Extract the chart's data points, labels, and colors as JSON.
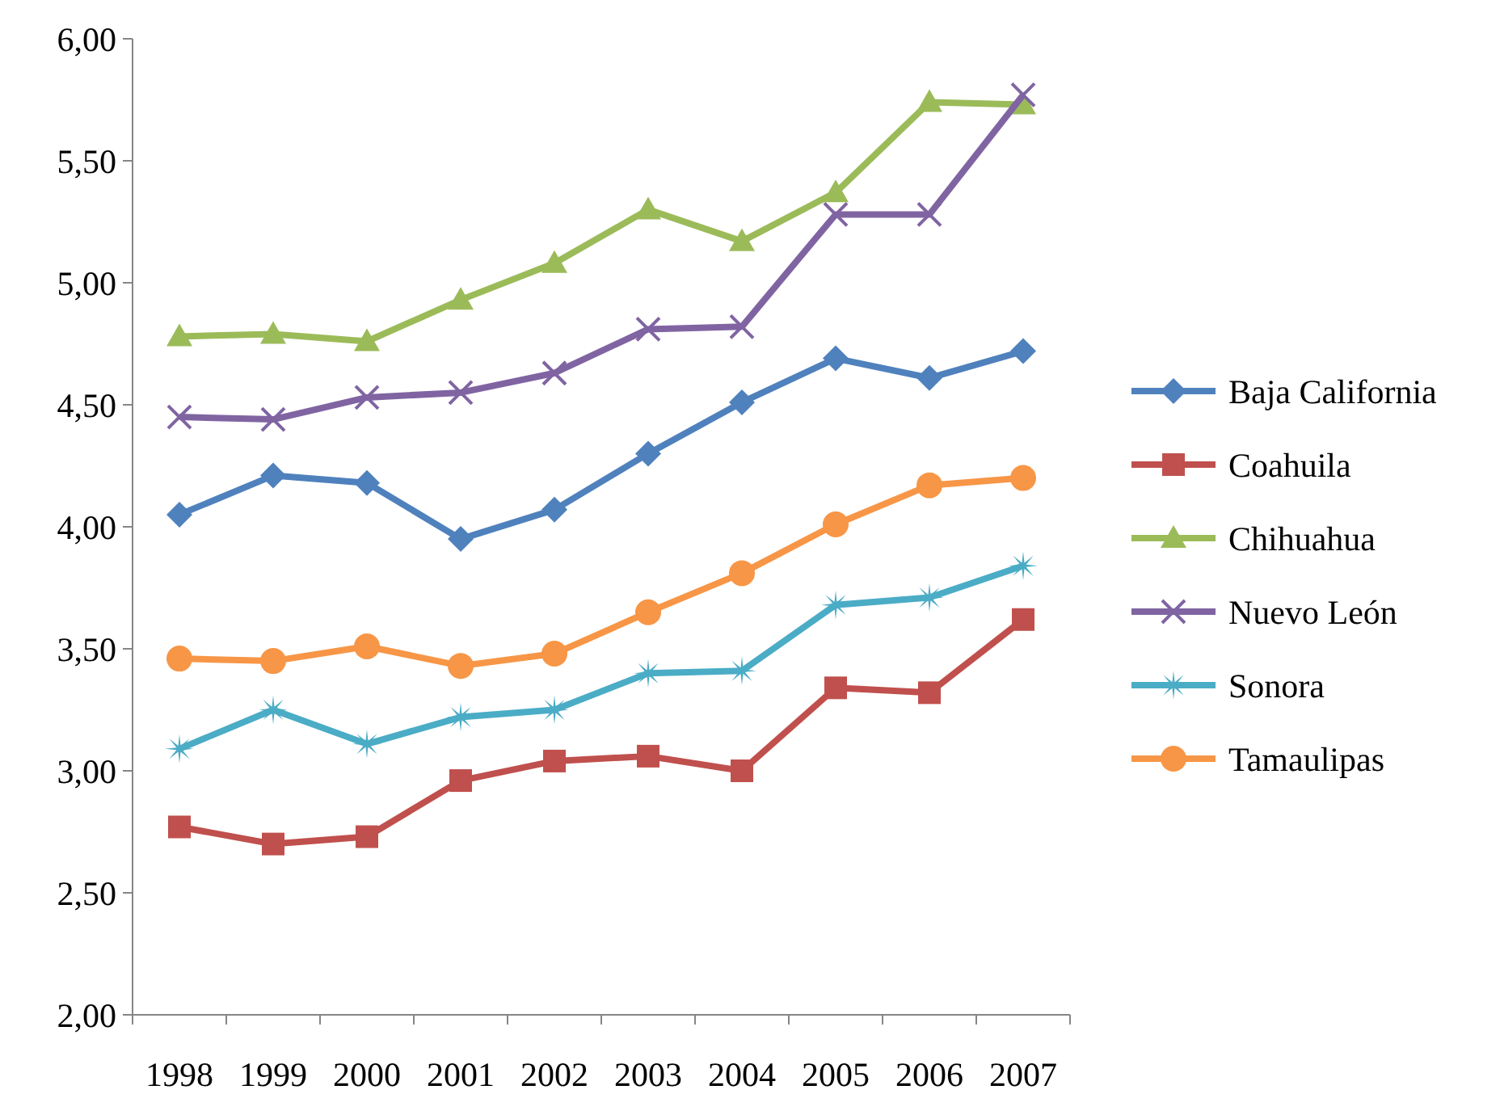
{
  "chart_data": {
    "type": "line",
    "categories": [
      "1998",
      "1999",
      "2000",
      "2001",
      "2002",
      "2003",
      "2004",
      "2005",
      "2006",
      "2007"
    ],
    "ylim": [
      2,
      6
    ],
    "yticks": [
      {
        "value": 2,
        "label": "2,00"
      },
      {
        "value": 2.5,
        "label": "2,50"
      },
      {
        "value": 3,
        "label": "3,00"
      },
      {
        "value": 3.5,
        "label": "3,50"
      },
      {
        "value": 4,
        "label": "4,00"
      },
      {
        "value": 4.5,
        "label": "4,50"
      },
      {
        "value": 5,
        "label": "5,00"
      },
      {
        "value": 5.5,
        "label": "5,50"
      },
      {
        "value": 6,
        "label": "6,00"
      }
    ],
    "grid": false,
    "legend": "right",
    "line_style": "solid",
    "series": [
      {
        "name": "Baja California",
        "color": "#4f81bd",
        "marker": "diamond",
        "values": [
          4.05,
          4.21,
          4.18,
          3.95,
          4.07,
          4.3,
          4.51,
          4.69,
          4.61,
          4.72
        ]
      },
      {
        "name": "Coahuila",
        "color": "#c0504d",
        "marker": "square",
        "values": [
          2.77,
          2.7,
          2.73,
          2.96,
          3.04,
          3.06,
          3.0,
          3.34,
          3.32,
          3.62
        ]
      },
      {
        "name": "Chihuahua",
        "color": "#9bbb59",
        "marker": "triangle",
        "values": [
          4.78,
          4.79,
          4.76,
          4.93,
          5.08,
          5.3,
          5.17,
          5.37,
          5.74,
          5.73
        ]
      },
      {
        "name": "Nuevo León",
        "color": "#8064a2",
        "marker": "cross",
        "values": [
          4.45,
          4.44,
          4.53,
          4.55,
          4.63,
          4.81,
          4.82,
          5.28,
          5.28,
          5.77
        ]
      },
      {
        "name": "Sonora",
        "color": "#4bacc6",
        "marker": "star",
        "values": [
          3.09,
          3.25,
          3.11,
          3.22,
          3.25,
          3.4,
          3.41,
          3.68,
          3.71,
          3.84
        ]
      },
      {
        "name": "Tamaulipas",
        "color": "#f79646",
        "marker": "circle",
        "values": [
          3.46,
          3.45,
          3.51,
          3.43,
          3.48,
          3.65,
          3.81,
          4.01,
          4.17,
          4.2
        ]
      }
    ]
  }
}
